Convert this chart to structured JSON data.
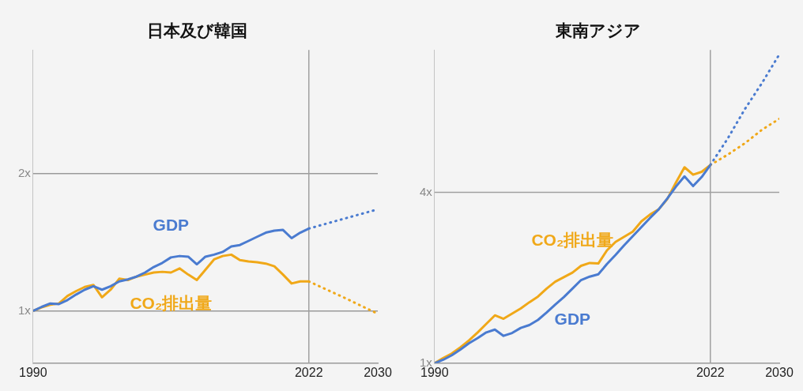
{
  "chart_data": [
    {
      "type": "line",
      "title": "日本及び韓国",
      "xlim": [
        1990,
        2030
      ],
      "xticks": [
        1990,
        2022,
        2030
      ],
      "ylim": [
        0.62,
        2.9
      ],
      "yticks": [
        {
          "value": 1,
          "label": "1x"
        },
        {
          "value": 2,
          "label": "2x"
        }
      ],
      "grid": "y",
      "legend": false,
      "marker": "none",
      "ref_lines": [
        {
          "axis": "x",
          "value": 2022
        }
      ],
      "series": [
        {
          "name": "GDP",
          "color": "#4a7bd0",
          "line_style": "solid",
          "x": [
            1990,
            1991,
            1992,
            1993,
            1994,
            1995,
            1996,
            1997,
            1998,
            1999,
            2000,
            2001,
            2002,
            2003,
            2004,
            2005,
            2006,
            2007,
            2008,
            2009,
            2010,
            2011,
            2012,
            2013,
            2014,
            2015,
            2016,
            2017,
            2018,
            2019,
            2020,
            2021,
            2022
          ],
          "values": [
            1.0,
            1.03,
            1.055,
            1.05,
            1.08,
            1.12,
            1.155,
            1.18,
            1.155,
            1.18,
            1.215,
            1.23,
            1.25,
            1.28,
            1.32,
            1.35,
            1.39,
            1.4,
            1.395,
            1.34,
            1.395,
            1.41,
            1.43,
            1.47,
            1.48,
            1.51,
            1.54,
            1.57,
            1.585,
            1.59,
            1.53,
            1.57,
            1.6
          ]
        },
        {
          "name": "CO₂排出量",
          "color": "#f0a818",
          "line_style": "solid",
          "x": [
            1990,
            1991,
            1992,
            1993,
            1994,
            1995,
            1996,
            1997,
            1998,
            1999,
            2000,
            2001,
            2002,
            2003,
            2004,
            2005,
            2006,
            2007,
            2008,
            2009,
            2010,
            2011,
            2012,
            2013,
            2014,
            2015,
            2016,
            2017,
            2018,
            2019,
            2020,
            2021,
            2022
          ],
          "values": [
            1.0,
            1.026,
            1.045,
            1.055,
            1.11,
            1.145,
            1.175,
            1.19,
            1.1,
            1.155,
            1.235,
            1.225,
            1.25,
            1.265,
            1.28,
            1.285,
            1.28,
            1.31,
            1.265,
            1.225,
            1.3,
            1.375,
            1.4,
            1.41,
            1.37,
            1.36,
            1.355,
            1.345,
            1.325,
            1.265,
            1.2,
            1.215,
            1.215
          ]
        },
        {
          "color": "#4a7bd0",
          "line_style": "dotted",
          "x": [
            2022,
            2026,
            2030
          ],
          "values": [
            1.6,
            1.67,
            1.74
          ]
        },
        {
          "color": "#f0a818",
          "line_style": "dotted",
          "x": [
            2022,
            2026,
            2030
          ],
          "values": [
            1.215,
            1.1,
            0.98
          ]
        }
      ]
    },
    {
      "type": "line",
      "title": "東南アジア",
      "xlim": [
        1990,
        2030
      ],
      "xticks": [
        1990,
        2022,
        2030
      ],
      "ylim": [
        1,
        6.5
      ],
      "yticks": [
        {
          "value": 1,
          "label": "1x"
        },
        {
          "value": 4,
          "label": "4x"
        }
      ],
      "legend": false,
      "marker": "none",
      "ref_lines": [
        {
          "axis": "x",
          "value": 2022
        },
        {
          "axis": "y",
          "value": 4
        }
      ],
      "series": [
        {
          "name": "GDP",
          "color": "#4a7bd0",
          "line_style": "solid",
          "x": [
            1990,
            1991,
            1992,
            1993,
            1994,
            1995,
            1996,
            1997,
            1998,
            1999,
            2000,
            2001,
            2002,
            2003,
            2004,
            2005,
            2006,
            2007,
            2008,
            2009,
            2010,
            2011,
            2012,
            2013,
            2014,
            2015,
            2016,
            2017,
            2018,
            2019,
            2020,
            2021,
            2022
          ],
          "values": [
            1.0,
            1.06,
            1.14,
            1.24,
            1.35,
            1.44,
            1.54,
            1.59,
            1.48,
            1.53,
            1.62,
            1.67,
            1.76,
            1.89,
            2.03,
            2.16,
            2.31,
            2.46,
            2.52,
            2.56,
            2.74,
            2.9,
            3.07,
            3.23,
            3.39,
            3.55,
            3.7,
            3.89,
            4.1,
            4.28,
            4.11,
            4.27,
            4.48
          ]
        },
        {
          "name": "CO₂排出量",
          "color": "#f0a818",
          "line_style": "solid",
          "x": [
            1990,
            1991,
            1992,
            1993,
            1994,
            1995,
            1996,
            1997,
            1998,
            1999,
            2000,
            2001,
            2002,
            2003,
            2004,
            2005,
            2006,
            2007,
            2008,
            2009,
            2010,
            2011,
            2012,
            2013,
            2014,
            2015,
            2016,
            2017,
            2018,
            2019,
            2020,
            2021,
            2022
          ],
          "values": [
            1.0,
            1.09,
            1.17,
            1.28,
            1.4,
            1.54,
            1.69,
            1.84,
            1.78,
            1.87,
            1.96,
            2.07,
            2.17,
            2.31,
            2.43,
            2.51,
            2.59,
            2.71,
            2.76,
            2.75,
            2.98,
            3.13,
            3.22,
            3.31,
            3.49,
            3.61,
            3.7,
            3.88,
            4.17,
            4.44,
            4.31,
            4.36,
            4.48
          ]
        },
        {
          "color": "#4a7bd0",
          "line_style": "dotted",
          "x": [
            2022,
            2024,
            2026,
            2028,
            2030
          ],
          "values": [
            4.48,
            4.94,
            5.46,
            5.92,
            6.42
          ]
        },
        {
          "color": "#f0a818",
          "line_style": "dotted",
          "x": [
            2022,
            2024,
            2026,
            2028,
            2030
          ],
          "values": [
            4.48,
            4.66,
            4.86,
            5.1,
            5.29
          ]
        }
      ]
    }
  ]
}
